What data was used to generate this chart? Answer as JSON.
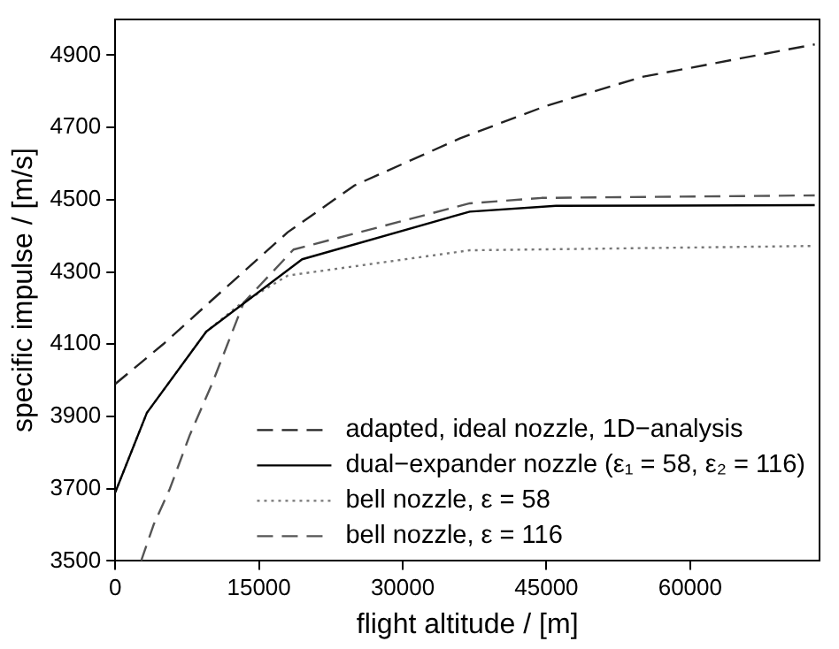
{
  "chart_data": {
    "type": "line",
    "xlabel": "flight altitude / [m]",
    "ylabel": "specific impulse / [m/s]",
    "xlim": [
      0,
      73500
    ],
    "xticks": [
      0,
      15000,
      30000,
      45000,
      60000
    ],
    "ylim": [
      3500,
      5000
    ],
    "yticks": [
      3500,
      3700,
      3900,
      4100,
      4300,
      4500,
      4700,
      4900
    ],
    "grid": false,
    "legend": "bottom right",
    "marker": "none",
    "series": [
      {
        "name": "adapted, ideal nozzle, 1D−analysis",
        "color": "#222222",
        "line_style": "dashed",
        "x": [
          0,
          5000,
          10000,
          18000,
          25000,
          36000,
          45000,
          55000,
          73000
        ],
        "values": [
          3990,
          4100,
          4220,
          4410,
          4540,
          4670,
          4760,
          4840,
          4930
        ]
      },
      {
        "name": "dual−expander nozzle (ε₁ = 58, ε₂ = 116)",
        "color": "#000000",
        "line_style": "solid",
        "x": [
          0,
          3300,
          9500,
          19500,
          37000,
          46000,
          73000
        ],
        "values": [
          3690,
          3910,
          4135,
          4335,
          4467,
          4483,
          4485
        ]
      },
      {
        "name": "bell nozzle, ε = 58",
        "color": "#777777",
        "line_style": "dotted",
        "x": [
          0,
          3300,
          9500,
          13000,
          18000,
          37000,
          73000
        ],
        "values": [
          3690,
          3910,
          4135,
          4210,
          4290,
          4360,
          4372
        ]
      },
      {
        "name": "bell nozzle, ε = 116",
        "color": "#555555",
        "line_style": "dashed",
        "x": [
          2700,
          4000,
          5700,
          7800,
          10100,
          13400,
          18600,
          37000,
          44500,
          73000
        ],
        "values": [
          3500,
          3600,
          3700,
          3850,
          3990,
          4215,
          4362,
          4490,
          4505,
          4512
        ]
      }
    ]
  }
}
